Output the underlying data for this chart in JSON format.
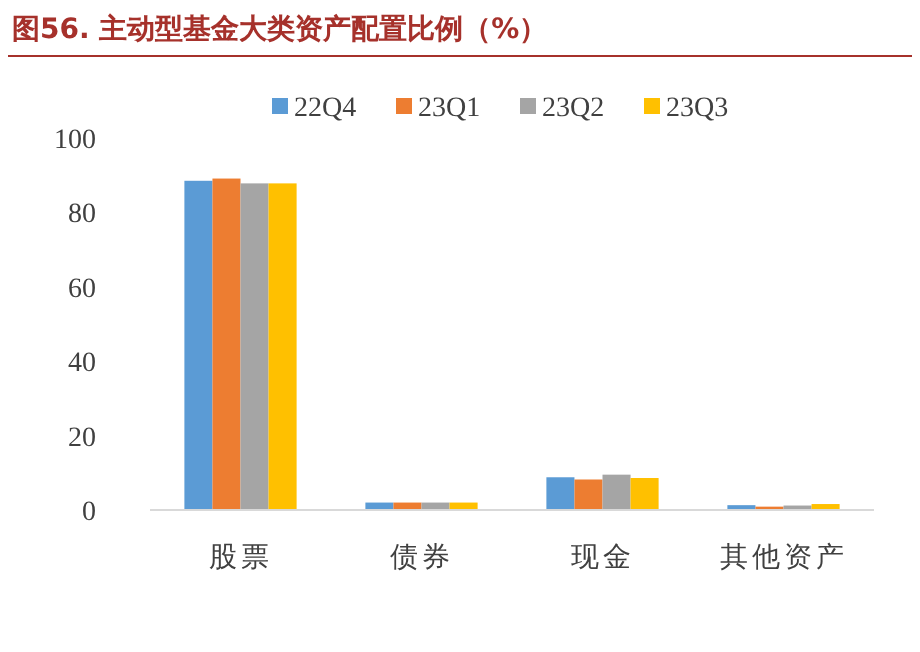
{
  "chart_data": {
    "type": "bar",
    "title": "图56. 主动型基金大类资产配置比例（%）",
    "categories": [
      "股票",
      "债券",
      "现金",
      "其他资产"
    ],
    "series": [
      {
        "name": "22Q4",
        "color": "#5b9bd5",
        "values": [
          88.5,
          2.0,
          8.8,
          1.3
        ]
      },
      {
        "name": "23Q1",
        "color": "#ed7d31",
        "values": [
          89.1,
          2.0,
          8.2,
          0.9
        ]
      },
      {
        "name": "23Q2",
        "color": "#a5a5a5",
        "values": [
          87.8,
          2.0,
          9.5,
          1.2
        ]
      },
      {
        "name": "23Q3",
        "color": "#ffc000",
        "values": [
          87.8,
          2.0,
          8.6,
          1.6
        ]
      }
    ],
    "ylim": [
      0,
      100
    ],
    "yticks": [
      0,
      20,
      40,
      60,
      80,
      100
    ],
    "legend": "top",
    "grid": false
  }
}
